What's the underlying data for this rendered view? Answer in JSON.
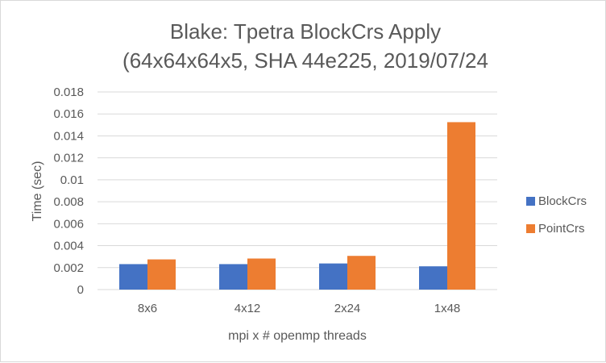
{
  "chart_data": {
    "type": "bar",
    "title": [
      "Blake: Tpetra BlockCrs Apply",
      "(64x64x64x5, SHA 44e225, 2019/07/24"
    ],
    "xlabel": "mpi x # openmp threads",
    "ylabel": "Time (sec)",
    "categories": [
      "8x6",
      "4x12",
      "2x24",
      "1x48"
    ],
    "series": [
      {
        "name": "BlockCrs",
        "color": "#4472c4",
        "values": [
          0.00232,
          0.00232,
          0.00238,
          0.00212
        ]
      },
      {
        "name": "PointCrs",
        "color": "#ed7d31",
        "values": [
          0.00275,
          0.00283,
          0.00307,
          0.01525
        ]
      }
    ],
    "ylim": [
      0,
      0.018
    ],
    "yticks": [
      "0",
      "0.002",
      "0.004",
      "0.006",
      "0.008",
      "0.01",
      "0.012",
      "0.014",
      "0.016",
      "0.018"
    ],
    "grid": true,
    "legend_position": "right"
  }
}
